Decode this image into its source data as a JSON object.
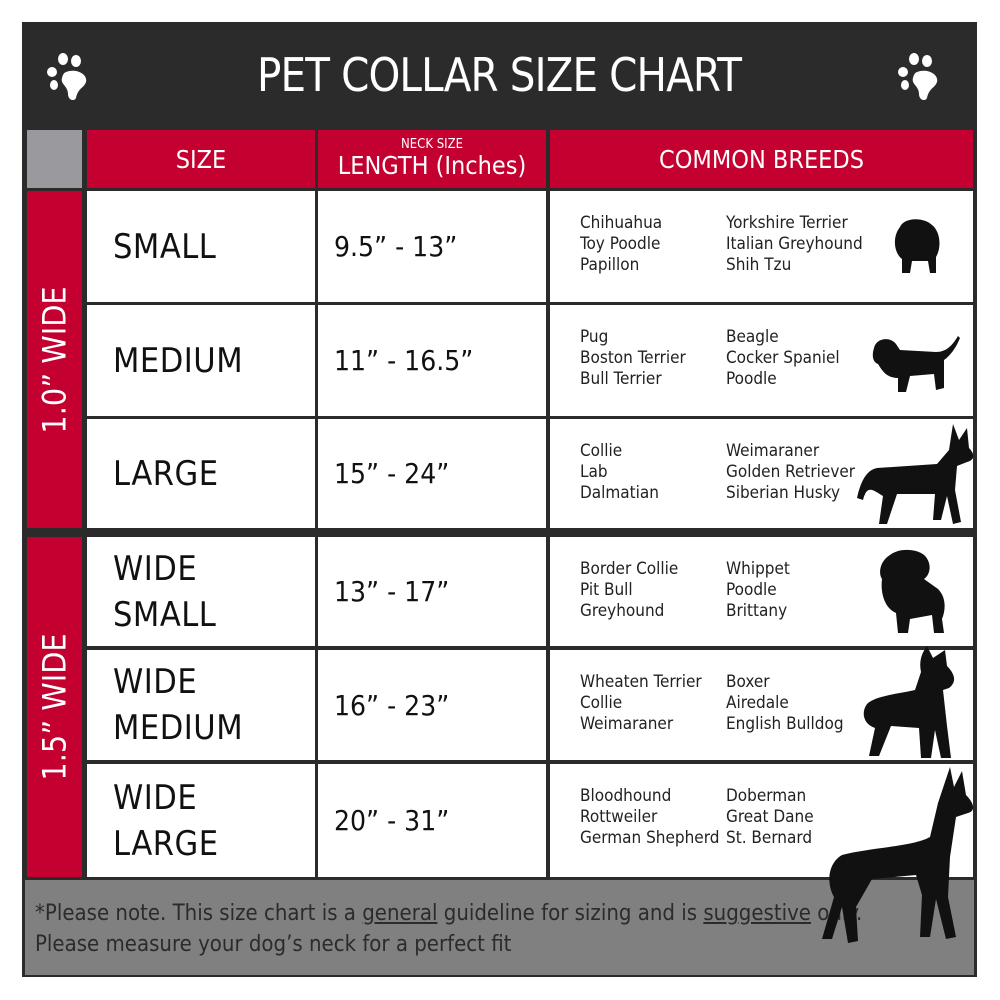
{
  "title": "PET COLLAR SIZE CHART",
  "icons": {
    "left": "paw-print-icon",
    "right": "paw-print-icon"
  },
  "colors": {
    "header_bg": "#2b2b2b",
    "accent_red": "#c3002f",
    "footer_bg": "#808080"
  },
  "columns": {
    "size": "SIZE",
    "length_small": "NECK SIZE",
    "length": "LENGTH (Inches)",
    "breeds": "COMMON BREEDS"
  },
  "groups": [
    {
      "label": "1.0” WIDE"
    },
    {
      "label": "1.5” WIDE"
    }
  ],
  "rows": [
    {
      "size": "SMALL",
      "length": "9.5” - 13”",
      "breeds_a": [
        "Chihuahua",
        "Toy Poodle",
        "Papillon"
      ],
      "breeds_b": [
        "Yorkshire Terrier",
        "Italian Greyhound",
        "Shih Tzu"
      ]
    },
    {
      "size": "MEDIUM",
      "length": "11” - 16.5”",
      "breeds_a": [
        "Pug",
        "Boston Terrier",
        "Bull Terrier"
      ],
      "breeds_b": [
        "Beagle",
        "Cocker Spaniel",
        "Poodle"
      ]
    },
    {
      "size": "LARGE",
      "length": "15” - 24”",
      "breeds_a": [
        "Collie",
        "Lab",
        "Dalmatian"
      ],
      "breeds_b": [
        "Weimaraner",
        "Golden Retriever",
        "Siberian Husky"
      ]
    },
    {
      "size": "WIDE SMALL",
      "size_l1": "WIDE",
      "size_l2": "SMALL",
      "length": "13” - 17”",
      "breeds_a": [
        "Border Collie",
        "Pit Bull",
        "Greyhound"
      ],
      "breeds_b": [
        "Whippet",
        "Poodle",
        "Brittany"
      ]
    },
    {
      "size": "WIDE MEDIUM",
      "size_l1": "WIDE",
      "size_l2": "MEDIUM",
      "length": "16” - 23”",
      "breeds_a": [
        "Wheaten Terrier",
        "Collie",
        "Weimaraner"
      ],
      "breeds_b": [
        "Boxer",
        "Airedale",
        "English Bulldog"
      ]
    },
    {
      "size": "WIDE LARGE",
      "size_l1": "WIDE",
      "size_l2": "LARGE",
      "length": "20” - 31”",
      "breeds_a": [
        "Bloodhound",
        "Rottweiler",
        "German Shepherd"
      ],
      "breeds_b": [
        "Doberman",
        "Great Dane",
        "St. Bernard"
      ]
    }
  ],
  "footer": {
    "p1": "*Please note. This size chart is a ",
    "u1": "general",
    "p2": " guideline for sizing and is ",
    "u2": "suggestive",
    "p3": " only.",
    "line2": "Please measure your dog’s neck for a perfect fit"
  }
}
